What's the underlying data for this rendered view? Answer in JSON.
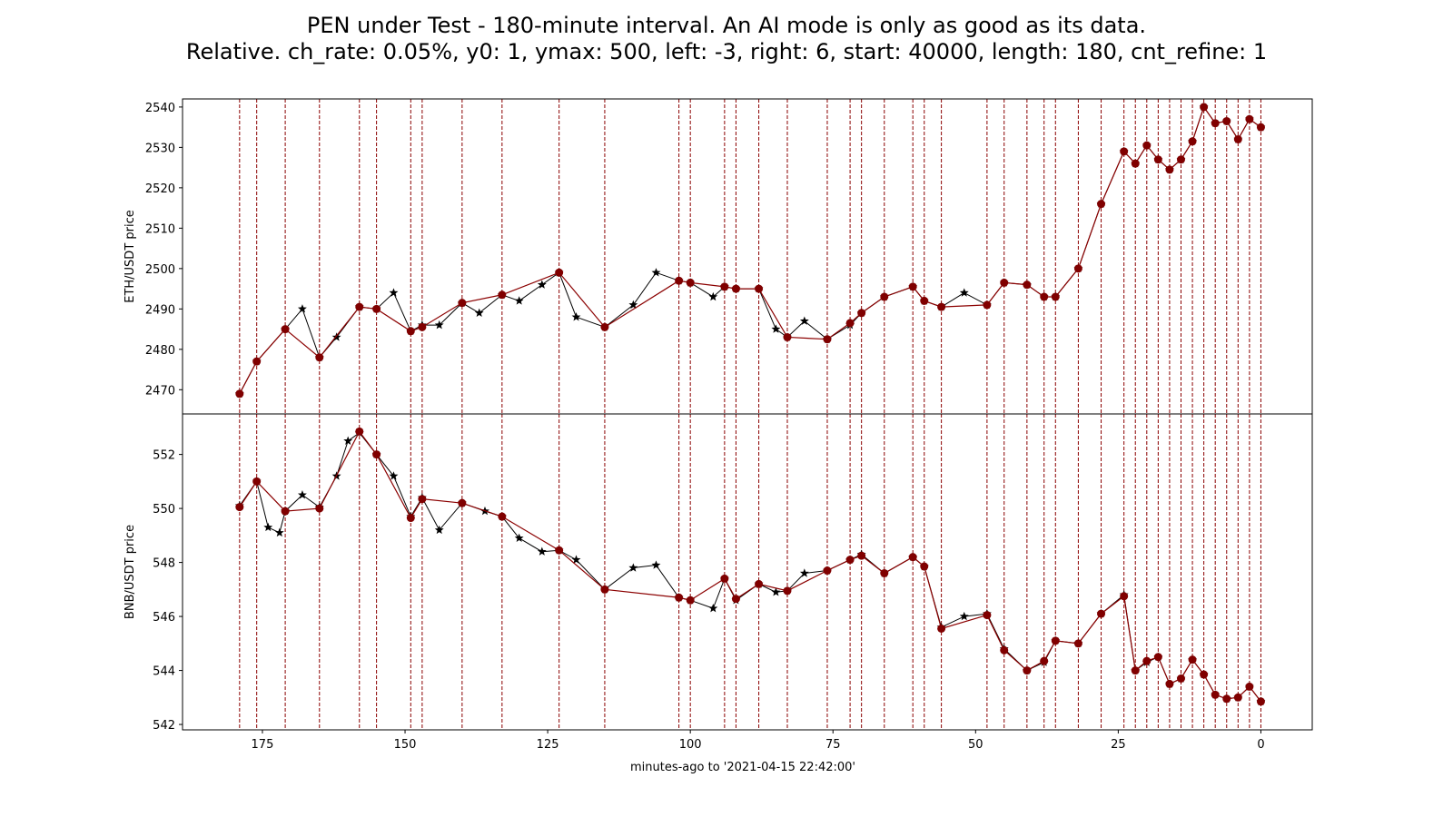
{
  "chart_data": {
    "type": "line",
    "title": [
      "PEN under Test - 180-minute interval. An AI mode is only as good as its data.",
      "Relative. ch_rate: 0.05%, y0: 1, ymax: 500, left: -3, right: 6, start: 40000, length: 180, cnt_refine: 1"
    ],
    "xlabel": "minutes-ago to '2021-04-15 22:42:00'",
    "xlim": [
      189,
      -9
    ],
    "xticks": [
      175,
      150,
      125,
      100,
      75,
      50,
      25,
      0
    ],
    "grid": false,
    "colors": {
      "series": "#000000",
      "marker": "#800000",
      "pen_line": "#8b0000",
      "vline": "#8b0000"
    },
    "vlines": [
      179,
      176,
      171,
      165,
      158,
      155,
      149,
      147,
      140,
      133,
      123,
      115,
      102,
      100,
      94,
      92,
      88,
      83,
      76,
      72,
      70,
      66,
      61,
      59,
      56,
      48,
      45,
      41,
      38,
      36,
      32,
      28,
      24,
      22,
      20,
      18,
      16,
      14,
      12,
      10,
      8,
      6,
      4,
      2,
      0
    ],
    "panels": [
      {
        "name": "eth",
        "ylabel": "ETH/USDT price",
        "ylim": [
          2464,
          2542
        ],
        "yticks": [
          2470,
          2480,
          2490,
          2500,
          2510,
          2520,
          2530,
          2540
        ],
        "series": [
          {
            "name": "ETH/USDT price",
            "marker": "star",
            "x": [
              179,
              176,
              171,
              168,
              165,
              162,
              158,
              155,
              152,
              149,
              147,
              144,
              140,
              137,
              133,
              130,
              126,
              123,
              120,
              115,
              110,
              106,
              102,
              100,
              96,
              94,
              92,
              88,
              85,
              83,
              80,
              76,
              72,
              70,
              66,
              61,
              59,
              56,
              52,
              48,
              45,
              41,
              38,
              36,
              32,
              28,
              24,
              22,
              20,
              18,
              16,
              14,
              12,
              10,
              8,
              6,
              4,
              2,
              0
            ],
            "values": [
              2469,
              2477,
              2485,
              2490,
              2478,
              2483,
              2490.5,
              2490,
              2494,
              2484.5,
              2486,
              2486,
              2491.5,
              2489,
              2493.5,
              2492,
              2496,
              2499,
              2488,
              2485.5,
              2491,
              2499,
              2497,
              2496.5,
              2493,
              2495.5,
              2495,
              2495,
              2485,
              2483,
              2487,
              2482.5,
              2486,
              2489,
              2493,
              2495.5,
              2492,
              2490.5,
              2494,
              2491,
              2496.5,
              2496,
              2493,
              2493,
              2500,
              2516,
              2529,
              2526,
              2530.5,
              2527,
              2524.5,
              2527,
              2531.5,
              2540,
              2536,
              2536.5,
              2532,
              2537,
              2535
            ]
          },
          {
            "name": "PEN points",
            "marker": "circle",
            "x": [
              179,
              176,
              171,
              165,
              158,
              155,
              149,
              147,
              140,
              133,
              123,
              115,
              102,
              100,
              94,
              92,
              88,
              83,
              76,
              72,
              70,
              66,
              61,
              59,
              56,
              48,
              45,
              41,
              38,
              36,
              32,
              28,
              24,
              22,
              20,
              18,
              16,
              14,
              12,
              10,
              8,
              6,
              4,
              2,
              0
            ],
            "values": [
              2469,
              2477,
              2485,
              2478,
              2490.5,
              2490,
              2484.5,
              2485.5,
              2491.5,
              2493.5,
              2499,
              2485.5,
              2497,
              2496.5,
              2495.5,
              2495,
              2495,
              2483,
              2482.5,
              2486.5,
              2489,
              2493,
              2495.5,
              2492,
              2490.5,
              2491,
              2496.5,
              2496,
              2493,
              2493,
              2500,
              2516,
              2529,
              2526,
              2530.5,
              2527,
              2524.5,
              2527,
              2531.5,
              2540,
              2536,
              2536.5,
              2532,
              2537,
              2535
            ]
          }
        ]
      },
      {
        "name": "bnb",
        "ylabel": "BNB/USDT price",
        "ylim": [
          541.8,
          553.5
        ],
        "yticks": [
          542,
          544,
          546,
          548,
          550,
          552
        ],
        "series": [
          {
            "name": "BNB/USDT price",
            "marker": "star",
            "x": [
              179,
              176,
              174,
              172,
              171,
              168,
              165,
              162,
              160,
              158,
              155,
              152,
              149,
              147,
              144,
              140,
              136,
              133,
              130,
              126,
              123,
              120,
              115,
              110,
              106,
              102,
              100,
              96,
              94,
              92,
              88,
              85,
              83,
              80,
              76,
              72,
              70,
              66,
              61,
              59,
              56,
              52,
              48,
              45,
              41,
              38,
              36,
              32,
              28,
              24,
              22,
              20,
              18,
              16,
              14,
              12,
              10,
              8,
              6,
              4,
              2,
              0
            ],
            "values": [
              550.1,
              551,
              549.3,
              549.1,
              549.9,
              550.5,
              550.05,
              551.2,
              552.5,
              552.8,
              552,
              551.2,
              549.7,
              550.4,
              549.2,
              550.2,
              549.9,
              549.7,
              548.9,
              548.4,
              548.45,
              548.1,
              547,
              547.8,
              547.9,
              546.7,
              546.6,
              546.3,
              547.4,
              546.6,
              547.2,
              546.9,
              546.95,
              547.6,
              547.7,
              548.1,
              548.3,
              547.6,
              548.2,
              547.85,
              545.6,
              546,
              546.1,
              544.8,
              544,
              544.3,
              545.1,
              545,
              546.1,
              546.8,
              544,
              544.3,
              544.5,
              543.5,
              543.7,
              544.4,
              543.85,
              543.1,
              542.95,
              543,
              543.4,
              542.85
            ]
          },
          {
            "name": "PEN points",
            "marker": "circle",
            "x": [
              179,
              176,
              171,
              165,
              158,
              155,
              149,
              147,
              140,
              133,
              123,
              115,
              102,
              100,
              94,
              92,
              88,
              83,
              76,
              72,
              70,
              66,
              61,
              59,
              56,
              48,
              45,
              41,
              38,
              36,
              32,
              28,
              24,
              22,
              20,
              18,
              16,
              14,
              12,
              10,
              8,
              6,
              4,
              2,
              0
            ],
            "values": [
              550.05,
              551,
              549.9,
              550,
              552.85,
              552,
              549.65,
              550.35,
              550.2,
              549.7,
              548.45,
              547,
              546.7,
              546.6,
              547.4,
              546.65,
              547.2,
              546.95,
              547.7,
              548.1,
              548.25,
              547.6,
              548.2,
              547.85,
              545.55,
              546.05,
              544.75,
              544,
              544.35,
              545.1,
              545,
              546.1,
              546.75,
              544,
              544.35,
              544.5,
              543.5,
              543.7,
              544.4,
              543.85,
              543.1,
              542.95,
              543,
              543.4,
              542.85
            ]
          }
        ]
      }
    ]
  }
}
